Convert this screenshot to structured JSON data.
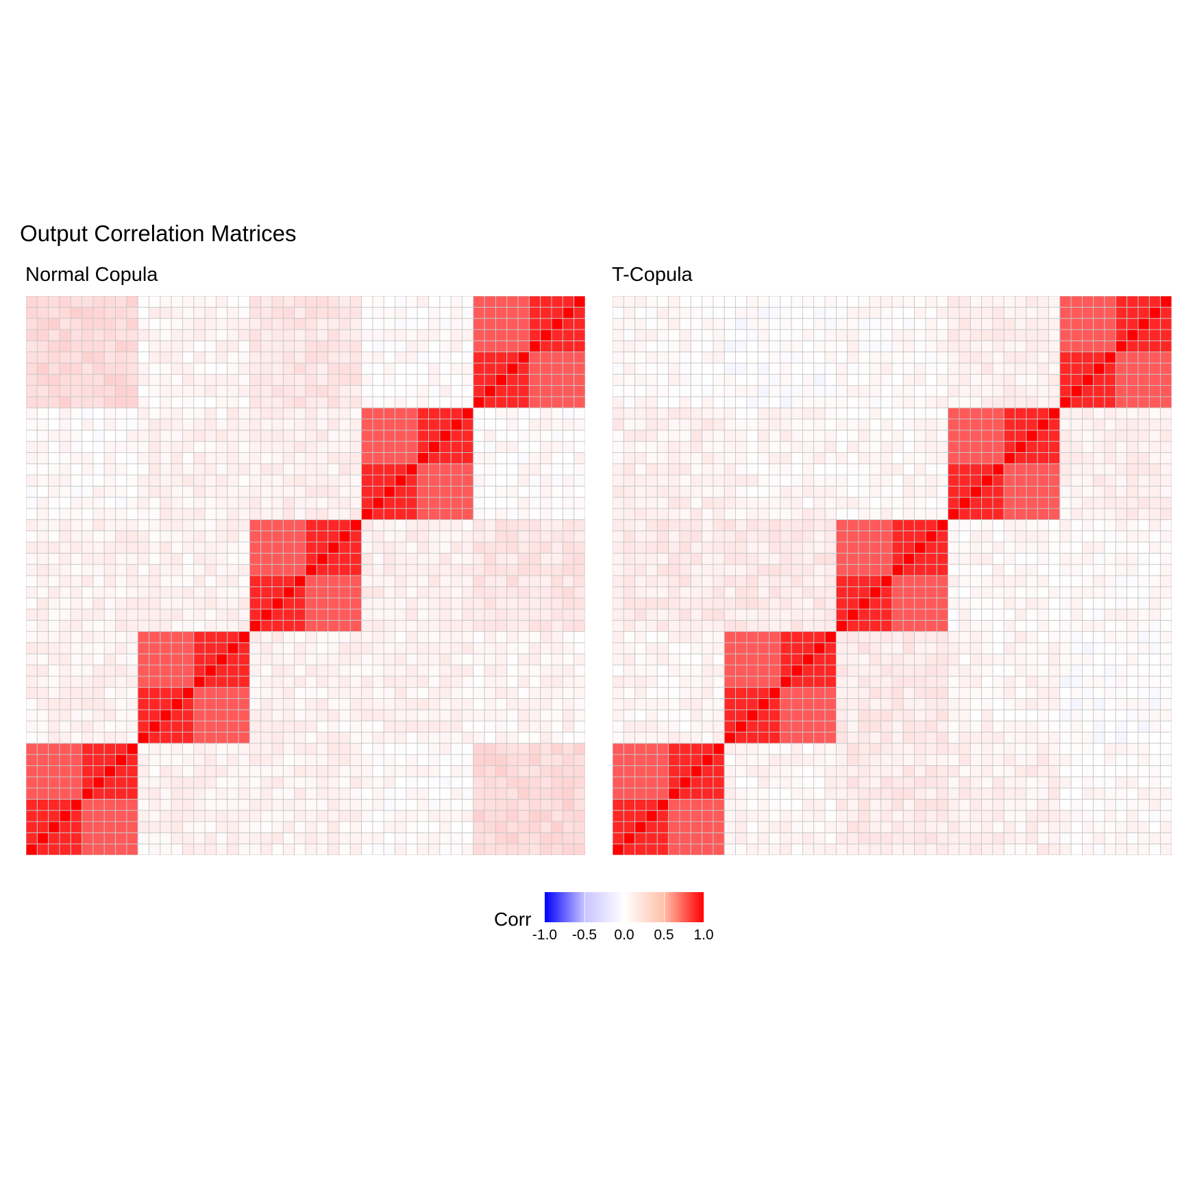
{
  "title": "Output Correlation Matrices",
  "colors": {
    "low": "#0000ff",
    "mid": "#ffffff",
    "high": "#ff0000",
    "grid": "#c8c8c8"
  },
  "chart_data": [
    {
      "type": "heatmap",
      "title": "Normal Copula",
      "n": 50,
      "block_size": 10,
      "sub_block_size": 5,
      "diagonal": 1.0,
      "same_sub_block": 0.85,
      "same_block": 0.65,
      "background": [
        [
          1.0,
          0.05,
          0.05,
          0.02,
          0.15
        ],
        [
          0.05,
          1.0,
          0.05,
          0.05,
          0.04
        ],
        [
          0.05,
          0.05,
          1.0,
          0.06,
          0.1
        ],
        [
          0.02,
          0.05,
          0.06,
          1.0,
          0.02
        ],
        [
          0.15,
          0.04,
          0.1,
          0.02,
          1.0
        ]
      ],
      "xlabel": "",
      "ylabel": ""
    },
    {
      "type": "heatmap",
      "title": "T-Copula",
      "n": 50,
      "block_size": 10,
      "sub_block_size": 5,
      "diagonal": 1.0,
      "same_sub_block": 0.85,
      "same_block": 0.65,
      "background": [
        [
          1.0,
          0.04,
          0.08,
          0.06,
          0.02
        ],
        [
          0.04,
          1.0,
          0.08,
          0.04,
          0.0
        ],
        [
          0.08,
          0.08,
          1.0,
          0.03,
          0.02
        ],
        [
          0.06,
          0.04,
          0.03,
          1.0,
          0.06
        ],
        [
          0.02,
          0.0,
          0.02,
          0.06,
          1.0
        ]
      ],
      "xlabel": "",
      "ylabel": ""
    }
  ],
  "legend": {
    "title": "Corr",
    "range": [
      -1.0,
      1.0
    ],
    "ticks": [
      -1.0,
      -0.5,
      0.0,
      0.5,
      1.0
    ],
    "tick_labels": [
      "-1.0",
      "-0.5",
      "0.0",
      "0.5",
      "1.0"
    ]
  }
}
